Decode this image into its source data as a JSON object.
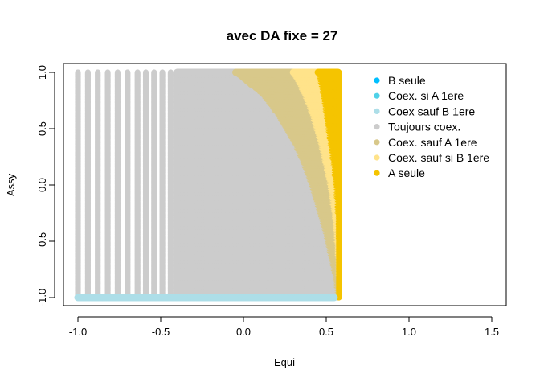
{
  "chart_data": {
    "type": "scatter",
    "title": "avec DA fixe = 27",
    "xlabel": "Equi",
    "ylabel": "Assy",
    "xlim": [
      -1.05,
      1.6
    ],
    "ylim": [
      -1.06,
      1.06
    ],
    "x_ticks": [
      -1.0,
      -0.5,
      0.0,
      0.5,
      1.0,
      1.5
    ],
    "x_tick_labels": [
      "-1.0",
      "-0.5",
      "0.0",
      "0.5",
      "1.0",
      "1.5"
    ],
    "y_ticks": [
      -1.0,
      -0.5,
      0.0,
      0.5,
      1.0
    ],
    "y_tick_labels": [
      "-1.0",
      "-0.5",
      "0.0",
      "0.5",
      "1.0"
    ],
    "grid": false,
    "legend_position": "top-right",
    "legend": [
      {
        "label": "B seule",
        "color": "#00BFFF"
      },
      {
        "label": "Coex. si A 1ere",
        "color": "#4FD1E8"
      },
      {
        "label": "Coex sauf B 1ere",
        "color": "#ADDEE8"
      },
      {
        "label": "Toujours coex.",
        "color": "#CCCCCC"
      },
      {
        "label": "Coex. sauf A 1ere",
        "color": "#D8C88A"
      },
      {
        "label": "Coex. sauf si B 1ere",
        "color": "#FFE38A"
      },
      {
        "label": "A seule",
        "color": "#F5C400"
      }
    ],
    "regions": {
      "equi_range": [
        -1.0,
        0.577
      ],
      "assy_range": [
        -1.0,
        1.0
      ],
      "columns_x": [
        -1.0,
        -0.94,
        -0.88,
        -0.82,
        -0.76,
        -0.7,
        -0.64,
        -0.59,
        -0.54,
        -0.49,
        -0.44,
        -0.4
      ],
      "bottom_row_assy": -1.0,
      "bottom_row_class": "Coex sauf B 1ere",
      "bottom_row_until_equi": 0.55,
      "toujours_boundary": {
        "assy": [
          1.0,
          0.8,
          0.6,
          0.4,
          0.2,
          0.0,
          -0.2,
          -0.4,
          -0.6,
          -0.8,
          -1.0
        ],
        "equi": [
          -0.05,
          0.12,
          0.22,
          0.3,
          0.36,
          0.41,
          0.45,
          0.49,
          0.52,
          0.55,
          0.57
        ]
      },
      "coex_sauf_a_boundary": {
        "assy": [
          1.0,
          0.8,
          0.6,
          0.4,
          0.2,
          0.0,
          -0.2,
          -0.4,
          -0.6,
          -0.8,
          -1.0
        ],
        "equi": [
          0.3,
          0.37,
          0.42,
          0.46,
          0.49,
          0.52,
          0.54,
          0.555,
          0.565,
          0.572,
          0.577
        ]
      },
      "coex_sauf_si_b_boundary": {
        "assy": [
          1.0,
          0.8,
          0.6,
          0.4,
          0.2,
          0.0,
          -0.2,
          -0.4,
          -0.6,
          -0.8,
          -1.0
        ],
        "equi": [
          0.45,
          0.48,
          0.5,
          0.52,
          0.54,
          0.555,
          0.565,
          0.57,
          0.575,
          0.577,
          0.577
        ]
      },
      "a_seule_max_equi": 0.577
    }
  }
}
